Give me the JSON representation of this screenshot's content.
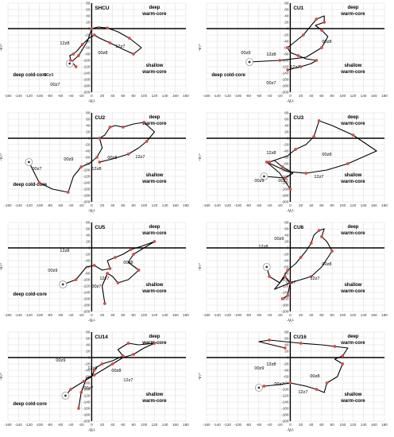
{
  "axis_labels": {
    "x": "-Vₜᴸ",
    "y": "-Vₜᵁ"
  },
  "quadrant_labels": {
    "deep_warm": "deep\nwarm-core",
    "shallow_warm": "shallow\nwarm-core",
    "deep_cold": "deep cold-core"
  },
  "chart_data": [
    {
      "type": "line",
      "title": "SHCU",
      "xlim": [
        -160,
        180
      ],
      "ylim": [
        -200,
        80
      ],
      "xticks": [
        -160,
        -140,
        -120,
        -100,
        -80,
        -60,
        -40,
        -20,
        0,
        20,
        40,
        60,
        80,
        100,
        120,
        140,
        160,
        180
      ],
      "yticks": [
        80,
        60,
        40,
        20,
        0,
        -20,
        -40,
        -60,
        -80,
        -100,
        -120,
        -140,
        -160,
        -180,
        -200
      ],
      "x": [
        -42,
        -25,
        -8,
        0,
        12,
        30,
        50,
        72,
        95,
        80,
        60,
        35,
        15,
        5,
        -5,
        -18,
        -28,
        -35,
        -42,
        -40,
        -30
      ],
      "y": [
        -110,
        -85,
        -40,
        0,
        5,
        2,
        -10,
        -30,
        -60,
        -80,
        -65,
        -45,
        -30,
        -20,
        -30,
        -50,
        -70,
        -80,
        -85,
        -100,
        -120
      ],
      "labels": [
        "00z8",
        "12z7",
        "12z8",
        "00z9",
        "00z7"
      ],
      "show_quadrant_labels": [
        "deep_warm",
        "shallow_warm",
        "deep_cold"
      ]
    },
    {
      "type": "line",
      "title": "CU1",
      "xlim": [
        -160,
        180
      ],
      "ylim": [
        -200,
        80
      ],
      "xticks": [
        -160,
        -140,
        -120,
        -100,
        -80,
        -60,
        -40,
        -20,
        0,
        20,
        40,
        60,
        80,
        100,
        120,
        140,
        160,
        180
      ],
      "yticks": [
        80,
        60,
        40,
        20,
        0,
        -20,
        -40,
        -60,
        -80,
        -100,
        -120,
        -140,
        -160,
        -180,
        -200
      ],
      "x": [
        -78,
        -20,
        30,
        60,
        72,
        60,
        48,
        65,
        65,
        50,
        40,
        25,
        10,
        -5,
        0,
        15,
        30,
        50,
        40,
        20,
        -5
      ],
      "y": [
        -105,
        -100,
        -90,
        -60,
        -25,
        -5,
        10,
        20,
        40,
        30,
        10,
        -20,
        -40,
        -60,
        -75,
        -85,
        -95,
        -100,
        -110,
        -120,
        -130
      ],
      "labels": [
        "00z8",
        "00z9",
        "12z8",
        "12z7",
        "00z7"
      ],
      "show_quadrant_labels": [
        "deep_warm",
        "shallow_warm",
        "deep_cold"
      ]
    },
    {
      "type": "line",
      "title": "CU2",
      "xlim": [
        -160,
        180
      ],
      "ylim": [
        -200,
        80
      ],
      "xticks": [
        -160,
        -140,
        -120,
        -100,
        -80,
        -60,
        -40,
        -20,
        0,
        20,
        40,
        60,
        80,
        100,
        120,
        140,
        160,
        180
      ],
      "yticks": [
        80,
        60,
        40,
        20,
        0,
        -20,
        -40,
        -60,
        -80,
        -100,
        -120,
        -140,
        -160,
        -180,
        -200
      ],
      "x": [
        -120,
        -100,
        -75,
        -45,
        -35,
        -20,
        -5,
        10,
        20,
        15,
        25,
        35,
        45,
        60,
        80,
        100,
        120,
        105,
        90,
        70,
        40,
        15
      ],
      "y": [
        -75,
        -140,
        -160,
        -170,
        -120,
        -90,
        -80,
        -60,
        -30,
        0,
        10,
        35,
        40,
        35,
        45,
        50,
        20,
        -10,
        -30,
        -50,
        -65,
        -75
      ],
      "labels": [
        "00z8",
        "12z7",
        "12z8",
        "00z9",
        "00z7"
      ],
      "show_quadrant_labels": [
        "deep_warm",
        "shallow_warm",
        "deep_cold"
      ]
    },
    {
      "type": "line",
      "title": "CU3",
      "xlim": [
        -160,
        180
      ],
      "ylim": [
        -200,
        80
      ],
      "xticks": [
        -160,
        -140,
        -120,
        -100,
        -80,
        -60,
        -40,
        -20,
        0,
        20,
        40,
        60,
        80,
        100,
        120,
        140,
        160,
        180
      ],
      "yticks": [
        80,
        60,
        40,
        20,
        0,
        -20,
        -40,
        -60,
        -80,
        -100,
        -120,
        -140,
        -160,
        -180,
        -200
      ],
      "x": [
        -50,
        -10,
        5,
        -15,
        -30,
        -40,
        -5,
        10,
        30,
        45,
        50,
        55,
        80,
        120,
        165,
        110,
        70,
        30,
        -5,
        -45,
        -20,
        0
      ],
      "y": [
        -120,
        -125,
        -110,
        -90,
        -70,
        -75,
        -55,
        -35,
        -20,
        5,
        30,
        55,
        40,
        10,
        -40,
        -80,
        -100,
        -110,
        -105,
        -75,
        -110,
        -160
      ],
      "labels": [
        "00z8",
        "12z8",
        "00z9",
        "12z7",
        "00z7"
      ],
      "show_quadrant_labels": [
        "deep_warm",
        "shallow_warm"
      ]
    },
    {
      "type": "line",
      "title": "CU5",
      "xlim": [
        -160,
        180
      ],
      "ylim": [
        -200,
        80
      ],
      "xticks": [
        -160,
        -140,
        -120,
        -100,
        -80,
        -60,
        -40,
        -20,
        0,
        20,
        40,
        60,
        80,
        100,
        120,
        140,
        160,
        180
      ],
      "yticks": [
        80,
        60,
        40,
        20,
        0,
        -20,
        -40,
        -60,
        -80,
        -100,
        -120,
        -140,
        -160,
        -180,
        -200
      ],
      "x": [
        -55,
        -30,
        -10,
        5,
        20,
        35,
        30,
        45,
        60,
        75,
        95,
        120,
        100,
        80,
        70,
        90,
        70,
        50,
        40,
        30,
        20,
        25
      ],
      "y": [
        -115,
        -100,
        -60,
        -55,
        -70,
        -65,
        -40,
        -30,
        -20,
        -5,
        5,
        20,
        0,
        -20,
        -45,
        -70,
        -100,
        -110,
        -90,
        -80,
        -120,
        -175
      ],
      "labels": [
        "00z8",
        "12z8",
        "00z9",
        "12z7",
        "00z7"
      ],
      "show_quadrant_labels": [
        "deep_warm",
        "shallow_warm",
        "deep_cold"
      ]
    },
    {
      "type": "line",
      "title": "CU6",
      "xlim": [
        -160,
        180
      ],
      "ylim": [
        -200,
        80
      ],
      "xticks": [
        -160,
        -140,
        -120,
        -100,
        -80,
        -60,
        -40,
        -20,
        0,
        20,
        40,
        60,
        80,
        100,
        120,
        140,
        160,
        180
      ],
      "yticks": [
        80,
        60,
        40,
        20,
        0,
        -20,
        -40,
        -60,
        -80,
        -100,
        -120,
        -140,
        -160,
        -180,
        -200
      ],
      "x": [
        -45,
        -40,
        -20,
        -5,
        10,
        20,
        30,
        40,
        45,
        55,
        65,
        60,
        70,
        80,
        60,
        40,
        20,
        0,
        -30,
        -10,
        0,
        -5,
        -15
      ],
      "y": [
        -60,
        -90,
        -110,
        -70,
        -50,
        -30,
        -10,
        15,
        40,
        55,
        60,
        35,
        20,
        -10,
        -60,
        -90,
        -100,
        -110,
        -130,
        -90,
        -110,
        -150,
        -160
      ],
      "labels": [
        "00z8",
        "12z8",
        "12z7",
        "00z9",
        "00z7"
      ],
      "show_quadrant_labels": [
        "deep_warm",
        "shallow_warm"
      ]
    },
    {
      "type": "line",
      "title": "CU14",
      "xlim": [
        -160,
        180
      ],
      "ylim": [
        -200,
        80
      ],
      "xticks": [
        -160,
        -140,
        -120,
        -100,
        -80,
        -60,
        -40,
        -20,
        0,
        20,
        40,
        60,
        80,
        100,
        120,
        140,
        160,
        180
      ],
      "yticks": [
        80,
        60,
        40,
        20,
        0,
        -20,
        -40,
        -60,
        -80,
        -100,
        -120,
        -140,
        -160,
        -180,
        -200
      ],
      "x": [
        -50,
        -40,
        -30,
        -15,
        0,
        5,
        10,
        20,
        40,
        60,
        50,
        70,
        90,
        120,
        100,
        80,
        60,
        40,
        20,
        5,
        -10,
        -20,
        -25
      ],
      "y": [
        -120,
        -100,
        -90,
        -75,
        -60,
        -40,
        -30,
        -20,
        -10,
        5,
        25,
        45,
        40,
        45,
        30,
        10,
        0,
        -20,
        -40,
        -55,
        -65,
        -110,
        -160
      ],
      "labels": [
        "00z8",
        "12z7",
        "12z8",
        "00z9",
        "00z7"
      ],
      "show_quadrant_labels": [
        "deep_warm",
        "shallow_warm",
        "deep_cold"
      ]
    },
    {
      "type": "line",
      "title": "CU16",
      "xlim": [
        -160,
        180
      ],
      "ylim": [
        -200,
        80
      ],
      "xticks": [
        -160,
        -140,
        -120,
        -100,
        -80,
        -60,
        -40,
        -20,
        0,
        20,
        40,
        60,
        80,
        100,
        120,
        140,
        160,
        180
      ],
      "yticks": [
        80,
        60,
        40,
        20,
        0,
        -20,
        -40,
        -60,
        -80,
        -100,
        -120,
        -140,
        -160,
        -180,
        -200
      ],
      "x": [
        -60,
        -50,
        -20,
        0,
        30,
        50,
        65,
        70,
        90,
        100,
        85,
        100,
        110,
        85,
        60,
        20,
        -10,
        -40,
        -60,
        -10
      ],
      "y": [
        -95,
        -90,
        -85,
        -80,
        -90,
        -100,
        -110,
        -80,
        -60,
        -20,
        -5,
        5,
        30,
        35,
        40,
        45,
        50,
        55,
        50,
        30
      ],
      "labels": [
        "00z8",
        "12z7",
        "12z8",
        "00z9",
        "00z7"
      ],
      "show_quadrant_labels": [
        "deep_warm",
        "shallow_warm"
      ]
    }
  ]
}
